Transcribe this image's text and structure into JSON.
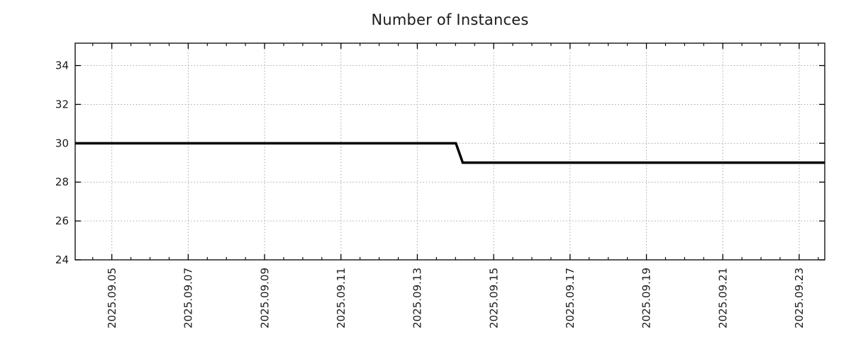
{
  "chart_data": {
    "type": "line",
    "title": "Number of Instances",
    "x_unit": "day of September 2025",
    "series": [
      {
        "name": "instances",
        "color": "#000000",
        "line_width": 3.5,
        "points": [
          [
            4.04,
            30
          ],
          [
            14.01,
            30
          ],
          [
            14.19,
            29
          ],
          [
            23.67,
            29
          ]
        ]
      }
    ],
    "xlim": [
      4.04,
      23.67
    ],
    "ylim": [
      24,
      35.15
    ],
    "x_major_ticks": [
      {
        "day": 5,
        "label": "2025.09.05"
      },
      {
        "day": 7,
        "label": "2025.09.07"
      },
      {
        "day": 9,
        "label": "2025.09.09"
      },
      {
        "day": 11,
        "label": "2025.09.11"
      },
      {
        "day": 13,
        "label": "2025.09.13"
      },
      {
        "day": 15,
        "label": "2025.09.15"
      },
      {
        "day": 17,
        "label": "2025.09.17"
      },
      {
        "day": 19,
        "label": "2025.09.19"
      },
      {
        "day": 21,
        "label": "2025.09.21"
      },
      {
        "day": 23,
        "label": "2025.09.23"
      }
    ],
    "x_minor_step": 0.5,
    "y_ticks": [
      24,
      26,
      28,
      30,
      32,
      34
    ],
    "grid": true,
    "legend": "none",
    "colors": {
      "line": "#000000",
      "grid": "#a6a6a6",
      "border": "#000000",
      "tick": "#000000",
      "text": "#1a1a1a",
      "background": "#ffffff"
    }
  }
}
